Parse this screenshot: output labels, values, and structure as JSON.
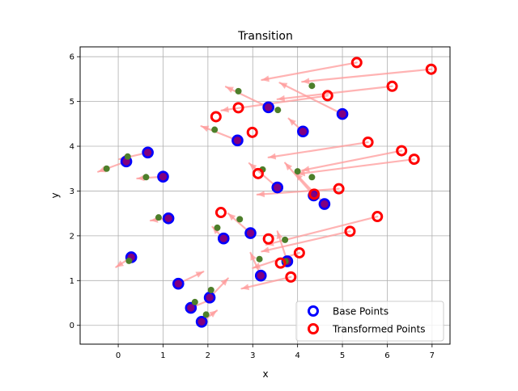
{
  "chart_data": {
    "type": "scatter",
    "title": "Transition",
    "xlabel": "x",
    "ylabel": "y",
    "xlim": [
      -0.85,
      7.4
    ],
    "ylim": [
      -0.42,
      6.22
    ],
    "xticks": [
      0,
      1,
      2,
      3,
      4,
      5,
      6,
      7
    ],
    "yticks": [
      0,
      1,
      2,
      3,
      4,
      5,
      6
    ],
    "grid": true,
    "legend_position": "lower-right",
    "colors": {
      "base": "#0000ff",
      "base_fill": "#800080",
      "transformed": "#ff0000",
      "arrow": "#ff9999",
      "midpoint": "#4d7f2a"
    },
    "series": [
      {
        "name": "Base Points",
        "points": [
          [
            0.18,
            3.66
          ],
          [
            0.66,
            3.86
          ],
          [
            1.0,
            3.32
          ],
          [
            1.12,
            2.39
          ],
          [
            0.29,
            1.52
          ],
          [
            1.34,
            0.93
          ],
          [
            1.62,
            0.39
          ],
          [
            1.86,
            0.08
          ],
          [
            2.04,
            0.62
          ],
          [
            2.35,
            1.94
          ],
          [
            2.66,
            4.13
          ],
          [
            2.95,
            2.06
          ],
          [
            3.18,
            1.11
          ],
          [
            3.35,
            4.87
          ],
          [
            3.55,
            3.08
          ],
          [
            3.77,
            1.43
          ],
          [
            4.12,
            4.33
          ],
          [
            4.36,
            2.9
          ],
          [
            4.6,
            2.71
          ],
          [
            5.0,
            4.72
          ]
        ]
      },
      {
        "name": "Transformed Points",
        "points": [
          [
            5.32,
            5.87
          ],
          [
            6.98,
            5.72
          ],
          [
            6.11,
            5.34
          ],
          [
            2.68,
            4.86
          ],
          [
            4.67,
            5.13
          ],
          [
            2.18,
            4.66
          ],
          [
            2.99,
            4.31
          ],
          [
            5.57,
            4.09
          ],
          [
            6.32,
            3.9
          ],
          [
            6.6,
            3.71
          ],
          [
            3.12,
            3.39
          ],
          [
            4.37,
            2.93
          ],
          [
            4.92,
            3.05
          ],
          [
            2.29,
            2.52
          ],
          [
            5.78,
            2.43
          ],
          [
            3.35,
            1.93
          ],
          [
            5.17,
            2.1
          ],
          [
            4.04,
            1.62
          ],
          [
            3.62,
            1.39
          ],
          [
            3.85,
            1.08
          ]
        ]
      }
    ],
    "midpoints": [
      [
        -0.26,
        3.5
      ],
      [
        0.21,
        3.77
      ],
      [
        0.62,
        3.31
      ],
      [
        0.9,
        2.41
      ],
      [
        0.24,
        1.44
      ],
      [
        1.71,
        0.52
      ],
      [
        1.96,
        0.24
      ],
      [
        2.07,
        0.79
      ],
      [
        2.21,
        2.18
      ],
      [
        2.15,
        4.37
      ],
      [
        2.71,
        2.37
      ],
      [
        2.68,
        5.23
      ],
      [
        3.15,
        1.48
      ],
      [
        3.22,
        3.48
      ],
      [
        3.56,
        4.81
      ],
      [
        3.72,
        1.91
      ],
      [
        4.0,
        3.44
      ],
      [
        4.32,
        5.35
      ],
      [
        4.32,
        3.31
      ],
      [
        3.73,
        1.43
      ]
    ],
    "arrows": [
      [
        [
          0.18,
          3.66
        ],
        [
          -0.45,
          3.43
        ]
      ],
      [
        [
          0.66,
          3.86
        ],
        [
          0.02,
          3.71
        ]
      ],
      [
        [
          1.0,
          3.32
        ],
        [
          0.42,
          3.28
        ]
      ],
      [
        [
          1.12,
          2.39
        ],
        [
          0.72,
          2.34
        ]
      ],
      [
        [
          0.29,
          1.52
        ],
        [
          -0.05,
          1.3
        ]
      ],
      [
        [
          1.34,
          0.93
        ],
        [
          1.9,
          1.2
        ]
      ],
      [
        [
          1.62,
          0.39
        ],
        [
          2.12,
          0.6
        ]
      ],
      [
        [
          1.86,
          0.08
        ],
        [
          2.2,
          0.33
        ]
      ],
      [
        [
          2.04,
          0.62
        ],
        [
          2.45,
          1.05
        ]
      ],
      [
        [
          2.35,
          1.94
        ],
        [
          2.1,
          2.2
        ]
      ],
      [
        [
          2.66,
          4.13
        ],
        [
          1.85,
          4.45
        ]
      ],
      [
        [
          2.95,
          2.06
        ],
        [
          2.45,
          2.5
        ]
      ],
      [
        [
          3.18,
          1.11
        ],
        [
          2.95,
          1.62
        ]
      ],
      [
        [
          3.35,
          4.87
        ],
        [
          2.4,
          5.33
        ]
      ],
      [
        [
          3.55,
          3.08
        ],
        [
          2.92,
          3.62
        ]
      ],
      [
        [
          3.77,
          1.43
        ],
        [
          3.55,
          2.1
        ]
      ],
      [
        [
          4.12,
          4.33
        ],
        [
          3.8,
          4.62
        ]
      ],
      [
        [
          4.36,
          2.9
        ],
        [
          3.72,
          3.63
        ]
      ],
      [
        [
          4.6,
          2.71
        ],
        [
          3.95,
          3.4
        ]
      ],
      [
        [
          5.0,
          4.72
        ],
        [
          3.6,
          5.42
        ]
      ],
      [
        [
          5.32,
          5.87
        ],
        [
          3.2,
          5.48
        ]
      ],
      [
        [
          6.98,
          5.72
        ],
        [
          4.1,
          5.44
        ]
      ],
      [
        [
          6.11,
          5.34
        ],
        [
          3.55,
          5.05
        ]
      ],
      [
        [
          5.57,
          4.09
        ],
        [
          3.35,
          3.75
        ]
      ],
      [
        [
          6.32,
          3.9
        ],
        [
          4.1,
          3.46
        ]
      ],
      [
        [
          6.6,
          3.71
        ],
        [
          4.0,
          3.38
        ]
      ],
      [
        [
          4.92,
          3.05
        ],
        [
          3.1,
          2.92
        ]
      ],
      [
        [
          5.78,
          2.43
        ],
        [
          3.3,
          1.8
        ]
      ],
      [
        [
          5.17,
          2.1
        ],
        [
          3.2,
          1.65
        ]
      ],
      [
        [
          4.04,
          1.62
        ],
        [
          3.0,
          1.28
        ]
      ],
      [
        [
          3.85,
          1.08
        ],
        [
          2.75,
          0.82
        ]
      ],
      [
        [
          4.67,
          5.13
        ],
        [
          2.3,
          4.8
        ]
      ]
    ]
  }
}
